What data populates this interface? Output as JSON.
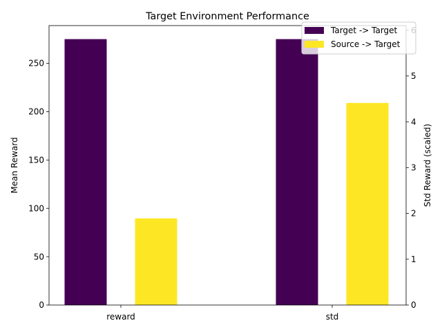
{
  "chart_data": {
    "type": "bar",
    "title": "Target Environment Performance",
    "xlabel": "",
    "ylabel": "Mean Reward",
    "ylabel_right": "Std Reward (scaled)",
    "categories": [
      "reward",
      "std"
    ],
    "ylim": [
      0,
      289
    ],
    "ylim_right": [
      0,
      6.1
    ],
    "yticks": [
      0,
      50,
      100,
      150,
      200,
      250
    ],
    "yticks_right": [
      0,
      1,
      2,
      3,
      4,
      5,
      6
    ],
    "grid": false,
    "legend_position": "top-right",
    "series": [
      {
        "name": "Target -> Target",
        "color": "#440154",
        "axis": "left",
        "values": [
          275,
          275
        ]
      },
      {
        "name": "Source -> Target",
        "color": "#fde725",
        "axis": "left",
        "values": [
          89.6,
          209
        ]
      }
    ]
  }
}
